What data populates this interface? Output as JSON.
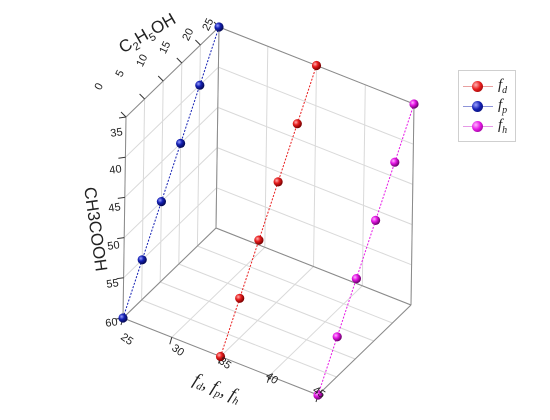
{
  "chart_data": {
    "type": "scatter",
    "title": "",
    "z_axis": {
      "ticks": [
        "0",
        "5",
        "10",
        "15",
        "20",
        "25"
      ],
      "range": [
        0,
        25
      ]
    },
    "y_axis": {
      "label": "CH3COOH",
      "ticks": [
        "35",
        "40",
        "45",
        "50",
        "55",
        "60"
      ],
      "range": [
        35,
        60
      ]
    },
    "x_axis": {
      "ticks": [
        "25",
        "30",
        "35",
        "40",
        "45"
      ],
      "range": [
        25,
        45
      ]
    },
    "series": [
      {
        "name_base": "f",
        "name_sub": "d",
        "color": "#e81d1d",
        "points": [
          [
            35,
            60,
            0
          ],
          [
            35,
            55,
            5
          ],
          [
            35,
            50,
            10
          ],
          [
            35,
            45,
            15
          ],
          [
            35,
            40,
            20
          ],
          [
            35,
            35,
            25
          ]
        ]
      },
      {
        "name_base": "f",
        "name_sub": "p",
        "color": "#1420b4",
        "points": [
          [
            25,
            60,
            0
          ],
          [
            25,
            55,
            5
          ],
          [
            25,
            50,
            10
          ],
          [
            25,
            45,
            15
          ],
          [
            25,
            40,
            20
          ],
          [
            25,
            35,
            25
          ]
        ]
      },
      {
        "name_base": "f",
        "name_sub": "h",
        "color": "#e617e6",
        "points": [
          [
            45,
            60,
            0
          ],
          [
            45,
            55,
            5
          ],
          [
            45,
            50,
            10
          ],
          [
            45,
            45,
            15
          ],
          [
            45,
            40,
            20
          ],
          [
            45,
            35,
            25
          ]
        ]
      }
    ],
    "grid": true,
    "legend_position": "right"
  }
}
